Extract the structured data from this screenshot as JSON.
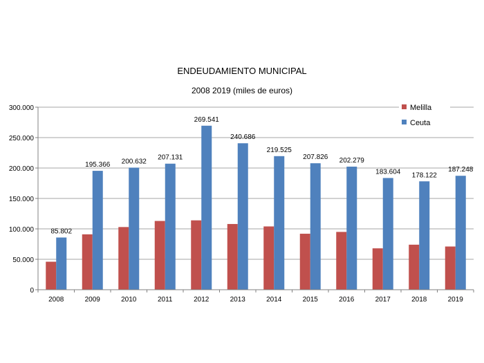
{
  "chart_data": {
    "type": "bar",
    "title": "ENDEUDAMIENTO MUNICIPAL",
    "subtitle": "2008 2019 (miles de euros)",
    "xlabel": "",
    "ylabel": "",
    "categories": [
      "2008",
      "2009",
      "2010",
      "2011",
      "2012",
      "2013",
      "2014",
      "2015",
      "2016",
      "2017",
      "2018",
      "2019"
    ],
    "series": [
      {
        "name": "Melilla",
        "color": "#c0504d",
        "values": [
          46000,
          91000,
          103000,
          113000,
          114000,
          108000,
          104000,
          92000,
          95000,
          68000,
          74000,
          71000
        ]
      },
      {
        "name": "Ceuta",
        "color": "#4f81bd",
        "values": [
          85802,
          195366,
          200632,
          207131,
          269541,
          240686,
          219525,
          207826,
          202279,
          183604,
          178122,
          187248
        ],
        "labels": [
          "85.802",
          "195.366",
          "200.632",
          "207.131",
          "269.541",
          "240.686",
          "219.525",
          "207.826",
          "202.279",
          "183.604",
          "178.122",
          "187.248"
        ]
      }
    ],
    "ylim": [
      0,
      300000
    ],
    "yticks": [
      0,
      50000,
      100000,
      150000,
      200000,
      250000,
      300000
    ],
    "ytick_labels": [
      "0",
      "50.000",
      "100.000",
      "150.000",
      "200.000",
      "250.000",
      "300.000"
    ],
    "grid": true,
    "legend": "top-right"
  }
}
